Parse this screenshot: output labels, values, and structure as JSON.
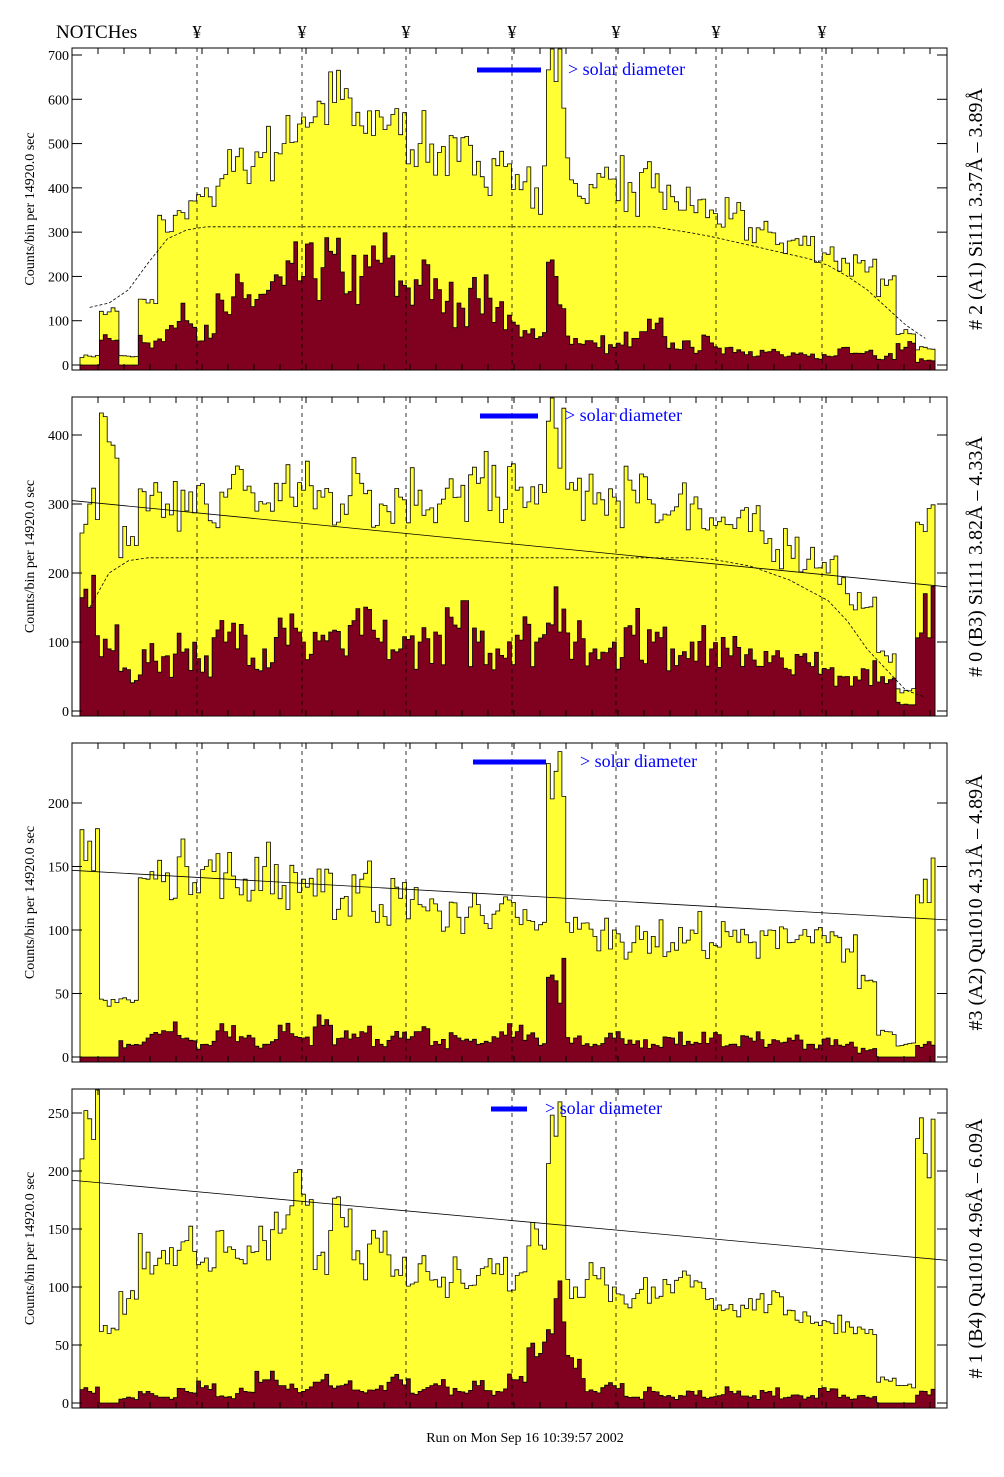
{
  "chart_data": {
    "type": "bar",
    "header_label": "NOTCHes",
    "notch_glyph": "¥",
    "notch_count": 7,
    "footer": "Run on Mon Sep 16 10:39:57 2002",
    "ylabel": "Counts/bin per  14920.0 sec",
    "legend_text": "> solar diameter",
    "colors": {
      "counts": "#ffff33",
      "subset": "#800020",
      "legend_bar": "#0000ff",
      "legend_text": "#0000ff"
    },
    "panels": [
      {
        "title": "# 2 (A1) Si111  3.37Å – 3.89Å",
        "ylim": [
          0,
          700
        ],
        "yticks": [
          "0",
          "100",
          "200",
          "300",
          "400",
          "500",
          "600",
          "700"
        ],
        "tick_values": [
          0,
          100,
          200,
          300,
          400,
          500,
          600,
          700
        ],
        "counts": [
          20,
          120,
          20,
          140,
          300,
          330,
          400,
          430,
          440,
          480,
          500,
          560,
          590,
          600,
          540,
          560,
          520,
          500,
          480,
          460,
          460,
          450,
          430,
          400,
          640,
          410,
          400,
          420,
          390,
          400,
          380,
          360,
          350,
          330,
          310,
          300,
          280,
          270,
          250,
          230,
          210,
          180,
          80,
          40
        ],
        "subset": [
          0,
          60,
          0,
          50,
          80,
          100,
          90,
          120,
          150,
          160,
          180,
          200,
          220,
          210,
          200,
          230,
          190,
          180,
          170,
          140,
          150,
          130,
          90,
          60,
          200,
          60,
          50,
          40,
          60,
          80,
          50,
          40,
          50,
          40,
          30,
          30,
          20,
          20,
          20,
          40,
          30,
          20,
          40,
          10
        ],
        "dashed": [
          130,
          140,
          170,
          230,
          285,
          305,
          312,
          312,
          312,
          312,
          312,
          312,
          312,
          312,
          312,
          312,
          312,
          312,
          312,
          312,
          312,
          312,
          312,
          312,
          312,
          312,
          312,
          312,
          312,
          312,
          305,
          298,
          290,
          280,
          270,
          260,
          250,
          240,
          225,
          200,
          170,
          130,
          90,
          60
        ],
        "line": null
      },
      {
        "title": "# 0 (B3) Si111  3.82Å – 4.33Å",
        "ylim": [
          0,
          450
        ],
        "yticks": [
          "0",
          "100",
          "200",
          "300",
          "400"
        ],
        "tick_values": [
          0,
          100,
          200,
          300,
          400
        ],
        "counts": [
          300,
          390,
          240,
          290,
          300,
          290,
          300,
          310,
          320,
          300,
          330,
          320,
          310,
          300,
          330,
          300,
          310,
          320,
          300,
          310,
          330,
          310,
          320,
          300,
          410,
          320,
          300,
          310,
          320,
          300,
          290,
          300,
          280,
          270,
          260,
          250,
          240,
          220,
          200,
          170,
          150,
          80,
          30,
          260
        ],
        "subset": [
          150,
          90,
          60,
          70,
          80,
          90,
          80,
          100,
          110,
          90,
          120,
          100,
          110,
          90,
          110,
          100,
          90,
          100,
          110,
          120,
          100,
          90,
          110,
          100,
          180,
          100,
          90,
          100,
          110,
          100,
          90,
          100,
          90,
          80,
          90,
          70,
          60,
          70,
          60,
          50,
          60,
          40,
          10,
          170
        ],
        "dashed": [
          150,
          200,
          218,
          222,
          222,
          222,
          222,
          222,
          222,
          222,
          222,
          222,
          222,
          222,
          222,
          222,
          222,
          222,
          222,
          222,
          222,
          222,
          222,
          222,
          222,
          222,
          222,
          222,
          222,
          222,
          222,
          222,
          220,
          215,
          210,
          200,
          190,
          175,
          160,
          130,
          90,
          60,
          30,
          20
        ],
        "line": [
          305,
          180
        ]
      },
      {
        "title": "#3 (A2) Qu1010  4.31Å – 4.89Å",
        "ylim": [
          0,
          250
        ],
        "yticks": [
          "0",
          "50",
          "100",
          "150",
          "200"
        ],
        "tick_values": [
          0,
          50,
          100,
          150,
          200
        ],
        "counts": [
          170,
          40,
          45,
          140,
          145,
          150,
          150,
          145,
          140,
          150,
          135,
          140,
          130,
          125,
          140,
          120,
          125,
          120,
          115,
          110,
          120,
          115,
          110,
          100,
          225,
          110,
          95,
          100,
          90,
          95,
          90,
          100,
          90,
          95,
          90,
          100,
          90,
          95,
          90,
          85,
          60,
          20,
          10,
          140
        ],
        "subset": [
          0,
          0,
          10,
          15,
          20,
          15,
          10,
          20,
          15,
          10,
          20,
          15,
          25,
          15,
          20,
          10,
          15,
          20,
          10,
          15,
          10,
          15,
          20,
          15,
          60,
          15,
          10,
          15,
          10,
          10,
          15,
          10,
          15,
          10,
          15,
          10,
          15,
          10,
          15,
          10,
          5,
          0,
          0,
          10
        ],
        "dashed": null,
        "line": [
          147,
          108
        ]
      },
      {
        "title": "# 1 (B4) Qu1010 4.96Å – 6.09Å",
        "ylim": [
          0,
          260
        ],
        "yticks": [
          "0",
          "50",
          "100",
          "150",
          "200",
          "250"
        ],
        "tick_values": [
          0,
          50,
          100,
          150,
          200,
          250
        ],
        "counts": [
          245,
          60,
          90,
          130,
          120,
          140,
          125,
          130,
          120,
          140,
          150,
          180,
          130,
          160,
          120,
          130,
          110,
          120,
          100,
          115,
          110,
          120,
          110,
          150,
          230,
          100,
          110,
          100,
          90,
          100,
          95,
          100,
          90,
          85,
          90,
          85,
          80,
          75,
          70,
          70,
          60,
          20,
          15,
          215
        ],
        "subset": [
          10,
          0,
          5,
          10,
          5,
          10,
          15,
          5,
          10,
          20,
          15,
          10,
          20,
          15,
          10,
          15,
          20,
          10,
          15,
          10,
          15,
          10,
          20,
          40,
          90,
          30,
          10,
          15,
          5,
          10,
          5,
          10,
          5,
          10,
          5,
          10,
          5,
          5,
          10,
          5,
          5,
          0,
          0,
          10
        ],
        "dashed": null,
        "line": [
          192,
          123
        ]
      }
    ]
  }
}
